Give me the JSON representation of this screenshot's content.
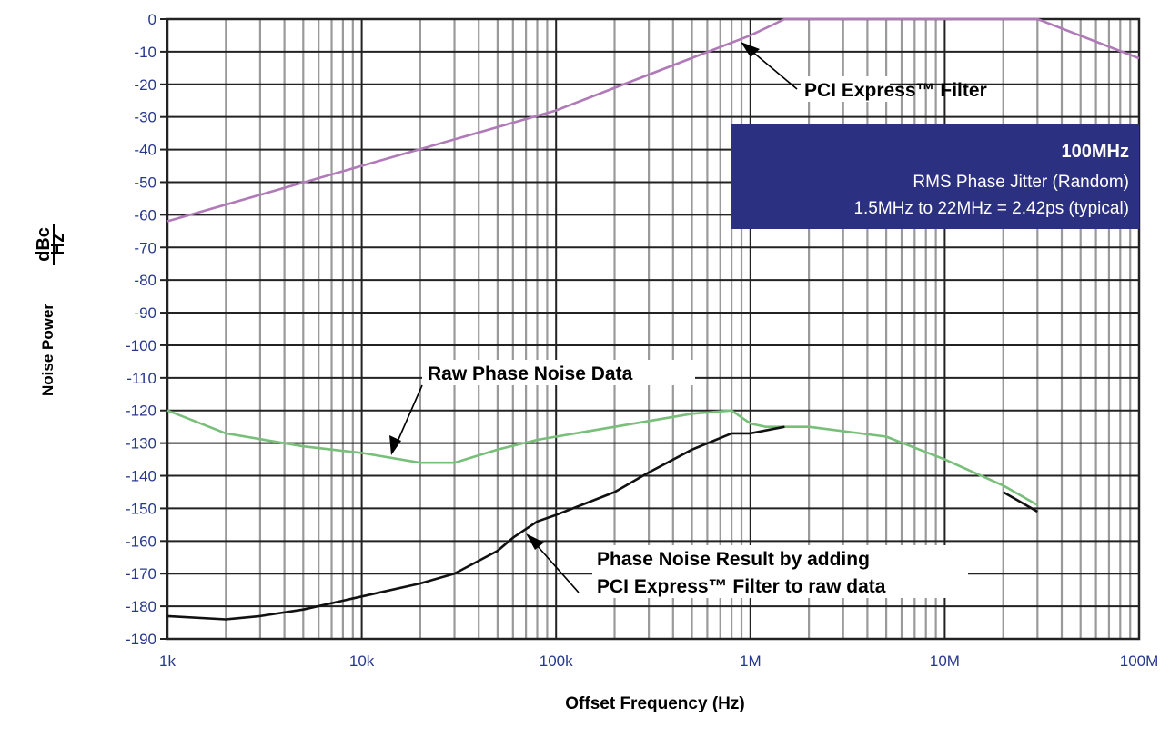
{
  "chart_data": {
    "type": "line",
    "title": "",
    "xlabel": "Offset Frequency (Hz)",
    "ylabel_main": "Noise Power",
    "ylabel_unit_num": "dBc",
    "ylabel_unit_den": "Hz",
    "x_scale": "log",
    "xlim": [
      1000,
      100000000
    ],
    "ylim": [
      -190,
      0
    ],
    "x_ticks": [
      {
        "value": 1000,
        "label": "1k"
      },
      {
        "value": 10000,
        "label": "10k"
      },
      {
        "value": 100000,
        "label": "100k"
      },
      {
        "value": 1000000,
        "label": "1M"
      },
      {
        "value": 10000000,
        "label": "10M"
      },
      {
        "value": 100000000,
        "label": "100M"
      }
    ],
    "y_ticks": [
      0,
      -10,
      -20,
      -30,
      -40,
      -50,
      -60,
      -70,
      -80,
      -90,
      -100,
      -110,
      -120,
      -130,
      -140,
      -150,
      -160,
      -170,
      -180,
      -190
    ],
    "grid": true,
    "series": [
      {
        "color": "#b07ab8",
        "x": [
          1000,
          10000,
          100000,
          1000000,
          1500000,
          3000000,
          5000000,
          10000000,
          30000000,
          100000000
        ],
        "y": [
          -62,
          -45,
          -28,
          -5,
          0,
          0,
          0,
          0,
          0,
          -12
        ]
      },
      {
        "color": "#78bf7a",
        "x": [
          1000,
          2000,
          5000,
          10000,
          20000,
          30000,
          50000,
          80000,
          100000,
          200000,
          500000,
          800000,
          1000000,
          1200000,
          2000000,
          5000000,
          10000000,
          20000000,
          30000000
        ],
        "y": [
          -120,
          -127,
          -131,
          -133,
          -136,
          -136,
          -132,
          -129,
          -128,
          -125,
          -121,
          -120,
          -124,
          -125,
          -125,
          -128,
          -135,
          -143,
          -149
        ]
      },
      {
        "color": "#111111",
        "x": [
          1000,
          2000,
          3000,
          5000,
          10000,
          20000,
          30000,
          50000,
          60000,
          80000,
          100000,
          200000,
          300000,
          500000,
          800000,
          1000000,
          1500000
        ],
        "y": [
          -183,
          -184,
          -183,
          -181,
          -177,
          -173,
          -170,
          -163,
          -159,
          -154,
          -152,
          -145,
          -139,
          -132,
          -127,
          -127,
          -125
        ]
      },
      {
        "color": "#111111",
        "x": [
          20000000,
          30000000
        ],
        "y": [
          -145,
          -151
        ]
      }
    ],
    "annotations": [
      {
        "text": "PCI Express™ Filter",
        "arrow_to": [
          800000,
          -3
        ]
      },
      {
        "text": "Raw Phase Noise Data",
        "arrow_to": [
          14000,
          -134
        ]
      },
      {
        "text": "Phase Noise Result by adding",
        "arrow_to": [
          60000,
          -160
        ]
      },
      {
        "text": "PCI Express™ Filter to raw data"
      }
    ],
    "infobox": {
      "bg_color": "#2c3080",
      "title": "100MHz",
      "line1": "RMS Phase Jitter (Random)",
      "line2": "1.5MHz to 22MHz = 2.42ps (typical)"
    }
  }
}
